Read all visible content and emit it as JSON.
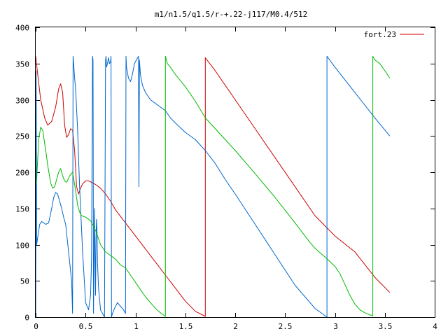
{
  "chart_data": {
    "type": "line",
    "title": "m1/n1.5/q1.5/r-+.22-j117/M0.4/512",
    "xlabel": "",
    "ylabel": "",
    "xlim": [
      0,
      4
    ],
    "ylim": [
      0,
      400
    ],
    "grid": false,
    "legend_position": "top-right",
    "x_ticks": [
      {
        "value": 0,
        "label": "0"
      },
      {
        "value": 0.5,
        "label": "0.5"
      },
      {
        "value": 1,
        "label": "1"
      },
      {
        "value": 1.5,
        "label": "1.5"
      },
      {
        "value": 2,
        "label": "2"
      },
      {
        "value": 2.5,
        "label": "2.5"
      },
      {
        "value": 3,
        "label": "3"
      },
      {
        "value": 3.5,
        "label": "3.5"
      },
      {
        "value": 4,
        "label": "4"
      }
    ],
    "y_ticks": [
      {
        "value": 0,
        "label": "0"
      },
      {
        "value": 50,
        "label": "50"
      },
      {
        "value": 100,
        "label": "100"
      },
      {
        "value": 150,
        "label": "150"
      },
      {
        "value": 200,
        "label": "200"
      },
      {
        "value": 250,
        "label": "250"
      },
      {
        "value": 300,
        "label": "300"
      },
      {
        "value": 350,
        "label": "350"
      },
      {
        "value": 400,
        "label": "400"
      }
    ],
    "series": [
      {
        "name": "fort.23",
        "color": "#cc0000",
        "x": [
          0,
          0.02,
          0.05,
          0.09,
          0.12,
          0.16,
          0.2,
          0.23,
          0.25,
          0.27,
          0.29,
          0.31,
          0.33,
          0.35,
          0.37,
          0.39,
          0.41,
          0.43,
          0.45,
          0.47,
          0.5,
          0.53,
          0.56,
          0.6,
          0.65,
          0.7,
          0.75,
          0.8,
          0.9,
          1.0,
          1.1,
          1.2,
          1.3,
          1.4,
          1.5,
          1.6,
          1.7,
          1.7,
          1.8,
          2.0,
          2.2,
          2.4,
          2.6,
          2.8,
          3.0,
          3.2,
          3.4,
          3.55
        ],
        "y": [
          360,
          335,
          300,
          275,
          265,
          270,
          290,
          315,
          322,
          310,
          265,
          248,
          252,
          260,
          258,
          230,
          180,
          170,
          178,
          184,
          188,
          188,
          186,
          183,
          178,
          170,
          160,
          148,
          130,
          112,
          94,
          76,
          58,
          40,
          22,
          8,
          1,
          358,
          340,
          300,
          260,
          220,
          180,
          140,
          112,
          90,
          55,
          34
        ]
      },
      {
        "name": "",
        "color": "#0066cc",
        "x": [
          0,
          0.005,
          0.01,
          0.02,
          0.04,
          0.06,
          0.08,
          0.1,
          0.13,
          0.16,
          0.18,
          0.2,
          0.22,
          0.24,
          0.26,
          0.28,
          0.3,
          0.33,
          0.36,
          0.37,
          0.375,
          0.38,
          0.39,
          0.4,
          0.42,
          0.44,
          0.47,
          0.5,
          0.53,
          0.55,
          0.56,
          0.57,
          0.575,
          0.58,
          0.59,
          0.6,
          0.605,
          0.61,
          0.615,
          0.62,
          0.63,
          0.65,
          0.67,
          0.69,
          0.7,
          0.705,
          0.71,
          0.72,
          0.73,
          0.74,
          0.75,
          0.755,
          0.76,
          0.77,
          0.79,
          0.82,
          0.85,
          0.88,
          0.9,
          0.905,
          0.91,
          0.93,
          0.95,
          0.97,
          0.99,
          1.01,
          1.03,
          1.035,
          1.04,
          1.045,
          1.05,
          1.07,
          1.1,
          1.15,
          1.2,
          1.25,
          1.3,
          1.35,
          1.4,
          1.5,
          1.6,
          1.7,
          1.8,
          1.9,
          2.0,
          2.2,
          2.4,
          2.6,
          2.8,
          2.92,
          2.92,
          3.0,
          3.2,
          3.4,
          3.55
        ],
        "y": [
          0,
          340,
          100,
          110,
          128,
          132,
          130,
          128,
          130,
          150,
          165,
          172,
          170,
          160,
          150,
          138,
          128,
          90,
          50,
          5,
          360,
          350,
          330,
          315,
          260,
          180,
          90,
          20,
          10,
          30,
          80,
          360,
          355,
          5,
          150,
          30,
          110,
          135,
          120,
          75,
          40,
          10,
          5,
          0,
          355,
          360,
          345,
          350,
          358,
          350,
          352,
          360,
          0,
          5,
          12,
          20,
          15,
          10,
          5,
          360,
          345,
          330,
          325,
          335,
          350,
          355,
          360,
          180,
          355,
          345,
          335,
          320,
          310,
          300,
          295,
          290,
          285,
          275,
          268,
          255,
          245,
          230,
          212,
          190,
          170,
          128,
          86,
          44,
          12,
          0,
          360,
          345,
          310,
          275,
          250
        ]
      },
      {
        "name": "",
        "color": "#00bb00",
        "x": [
          0,
          0.005,
          0.01,
          0.03,
          0.05,
          0.07,
          0.1,
          0.12,
          0.15,
          0.17,
          0.19,
          0.21,
          0.23,
          0.25,
          0.27,
          0.29,
          0.31,
          0.34,
          0.37,
          0.4,
          0.42,
          0.44,
          0.46,
          0.5,
          0.55,
          0.6,
          0.65,
          0.7,
          0.75,
          0.8,
          0.85,
          0.9,
          0.95,
          1.0,
          1.05,
          1.1,
          1.15,
          1.2,
          1.25,
          1.28,
          1.3,
          1.3,
          1.32,
          1.35,
          1.4,
          1.5,
          1.6,
          1.7,
          1.8,
          1.9,
          2.0,
          2.2,
          2.4,
          2.6,
          2.75,
          2.8,
          2.9,
          3.0,
          3.05,
          3.1,
          3.15,
          3.2,
          3.25,
          3.3,
          3.35,
          3.38,
          3.38,
          3.4,
          3.45,
          3.5,
          3.55
        ],
        "y": [
          185,
          185,
          190,
          245,
          262,
          258,
          230,
          210,
          185,
          178,
          180,
          190,
          200,
          205,
          195,
          188,
          186,
          195,
          200,
          175,
          155,
          145,
          140,
          138,
          133,
          120,
          100,
          90,
          85,
          80,
          72,
          68,
          58,
          48,
          38,
          28,
          20,
          12,
          6,
          3,
          1,
          360,
          350,
          345,
          335,
          318,
          298,
          275,
          260,
          245,
          230,
          198,
          165,
          130,
          103,
          95,
          83,
          70,
          60,
          45,
          30,
          18,
          10,
          6,
          3,
          2,
          360,
          355,
          350,
          340,
          330
        ]
      }
    ]
  }
}
